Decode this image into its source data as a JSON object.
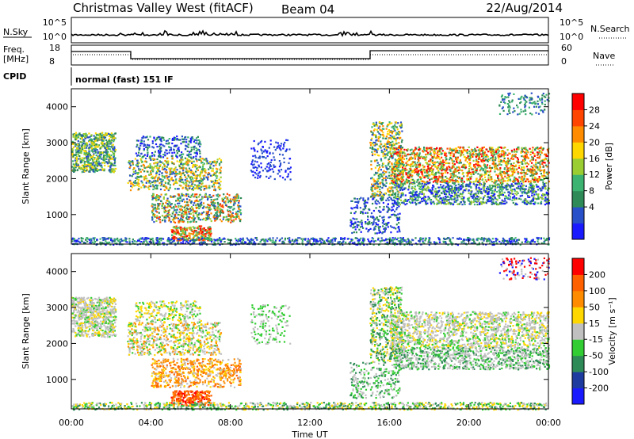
{
  "header": {
    "station": "Christmas Valley West (fitACF)",
    "beam": "Beam 04",
    "date": "22/Aug/2014"
  },
  "top_panels": {
    "nsky_label": "N.Sky",
    "nsky_ticks": [
      "10^5",
      "10^0"
    ],
    "nsearch_label": "N.Search",
    "freq_label_1": "Freq.",
    "freq_label_2": "[MHz]",
    "freq_ticks": [
      "18",
      "8"
    ],
    "nave_label": "Nave",
    "nave_ticks": [
      "60",
      "0"
    ],
    "cpid_label": "CPID",
    "cpid_value": "normal (fast) 151 IF"
  },
  "chart_data": [
    {
      "type": "heatmap",
      "name": "power",
      "ylabel": "Slant Range [km]",
      "yticks": [
        1000,
        2000,
        3000,
        4000
      ],
      "ylim": [
        180,
        4500
      ],
      "xlim": [
        0,
        24
      ],
      "colorbar": {
        "label": "Power [dB]",
        "ticks": [
          "28",
          "24",
          "20",
          "16",
          "12",
          "8",
          "4"
        ],
        "colors": [
          "#1a1aff",
          "#2850c8",
          "#2e8b57",
          "#3cb371",
          "#9acd32",
          "#ffd700",
          "#ff8c00",
          "#ff4500",
          "#ff0000"
        ]
      }
    },
    {
      "type": "heatmap",
      "name": "velocity",
      "ylabel": "Slant Range [km]",
      "xlabel": "Time UT",
      "yticks": [
        1000,
        2000,
        3000,
        4000
      ],
      "ylim": [
        180,
        4500
      ],
      "xlim": [
        0,
        24
      ],
      "xticks": [
        "00:00",
        "04:00",
        "08:00",
        "12:00",
        "16:00",
        "20:00",
        "00:00"
      ],
      "colorbar": {
        "label": "Velocity [m s⁻¹]",
        "ticks": [
          "200",
          "100",
          "50",
          "15",
          "-15",
          "-50",
          "-100",
          "-200"
        ],
        "colors": [
          "#1a1aff",
          "#1e3ca0",
          "#2e8b57",
          "#32cd32",
          "#c0c0c0",
          "#ffd700",
          "#ff8c00",
          "#ff6000",
          "#ff0000"
        ]
      }
    }
  ]
}
